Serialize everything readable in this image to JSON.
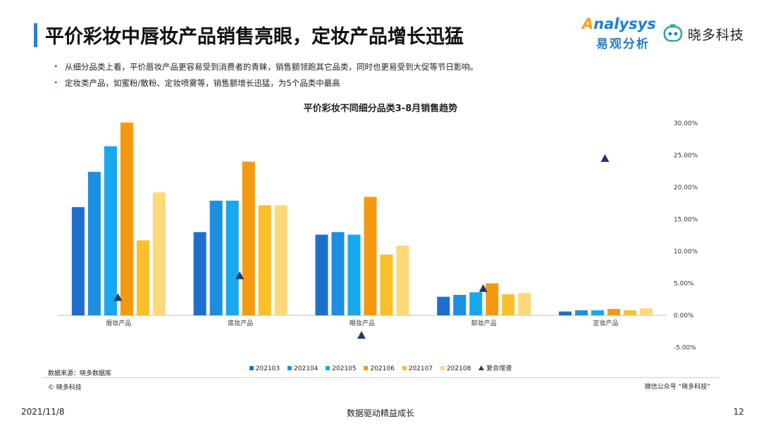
{
  "header": {
    "title": "平价彩妆中唇妆产品销售亮眼，定妆产品增长迅猛",
    "logo_analysys_en_prefix": "A",
    "logo_analysys_en_rest": "nalysys",
    "logo_analysys_cn": "易观分析",
    "logo_xiaoduo_name": "晓多科技"
  },
  "bullets": [
    "从细分品类上看，平价唇妆产品更容易受到消费者的青睐，销售额领跑其它品类，同时也更易受到大促等节日影响。",
    "定妆类产品，如蜜粉/散粉、定妆喷雾等，销售额增长迅猛，为5个品类中最高"
  ],
  "colors": {
    "accent": "#2e7fd3",
    "series": [
      "#1e6fcc",
      "#1d8fe0",
      "#17a8ee",
      "#f59a10",
      "#fbbf2c",
      "#fdd97a"
    ],
    "growth": "#1f3a68"
  },
  "chart_data": {
    "type": "bar",
    "title": "平价彩妆不同细分品类3-8月销售趋势",
    "categories": [
      "唇妆产品",
      "底妆产品",
      "眼妆产品",
      "卸妆产品",
      "定妆产品"
    ],
    "series": [
      {
        "name": "202103",
        "values": [
          0.169,
          0.13,
          0.126,
          0.029,
          0.006
        ]
      },
      {
        "name": "202104",
        "values": [
          0.224,
          0.179,
          0.13,
          0.032,
          0.008
        ]
      },
      {
        "name": "202105",
        "values": [
          0.264,
          0.179,
          0.126,
          0.036,
          0.008
        ]
      },
      {
        "name": "202106",
        "values": [
          0.301,
          0.24,
          0.185,
          0.05,
          0.01
        ]
      },
      {
        "name": "202107",
        "values": [
          0.117,
          0.172,
          0.095,
          0.033,
          0.008
        ]
      },
      {
        "name": "202108",
        "values": [
          0.192,
          0.172,
          0.109,
          0.035,
          0.011
        ]
      }
    ],
    "growth_series": {
      "name": "复合增速",
      "values": [
        0.028,
        0.062,
        -0.031,
        0.042,
        0.245
      ]
    },
    "y_axis": {
      "min": -0.05,
      "max": 0.3,
      "ticks": [
        "30.00%",
        "25.00%",
        "20.00%",
        "15.00%",
        "10.00%",
        "5.00%",
        "0.00%",
        "-5.00%"
      ],
      "tick_values": [
        0.3,
        0.25,
        0.2,
        0.15,
        0.1,
        0.05,
        0.0,
        -0.05
      ],
      "position": "right"
    },
    "legend": [
      "202103",
      "202104",
      "202105",
      "202106",
      "202107",
      "202108",
      "复合增速"
    ],
    "grid": false
  },
  "footer": {
    "source": "数据来源：晓多数据库",
    "copyright": "© 晓多科技",
    "wechat": "微信公众号 “晓多科技”",
    "date": "2021/11/8",
    "slogan": "数据驱动精益成长",
    "page": "12"
  }
}
